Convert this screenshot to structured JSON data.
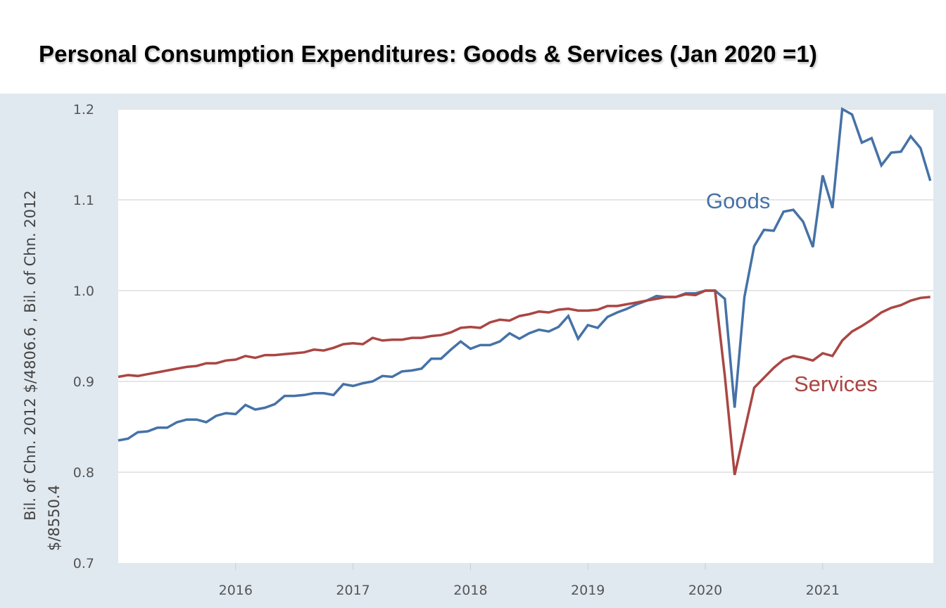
{
  "chart_data": {
    "type": "line",
    "title": "Personal Consumption Expenditures: Goods & Services (Jan 2020 =1)",
    "ylabel_lines": [
      "Bil. of Chn. 2012 $/4806.6 , Bil. of Chn. 2012",
      "$/8550.4"
    ],
    "xlabel": "",
    "x_start": "2015-01",
    "x_frequency": "monthly",
    "xlim": [
      "2015-01",
      "2021-12"
    ],
    "ylim": [
      0.7,
      1.2
    ],
    "y_ticks": [
      "0.7",
      "0.8",
      "0.9",
      "1.0",
      "1.1",
      "1.2"
    ],
    "x_ticks": [
      "2016",
      "2017",
      "2018",
      "2019",
      "2020",
      "2021"
    ],
    "grid": "horizontal",
    "series": [
      {
        "name": "Goods",
        "color": "#4572a7",
        "values": [
          0.835,
          0.837,
          0.844,
          0.845,
          0.849,
          0.849,
          0.855,
          0.858,
          0.858,
          0.855,
          0.862,
          0.865,
          0.864,
          0.874,
          0.869,
          0.871,
          0.875,
          0.884,
          0.884,
          0.885,
          0.887,
          0.887,
          0.885,
          0.897,
          0.895,
          0.898,
          0.9,
          0.906,
          0.905,
          0.911,
          0.912,
          0.914,
          0.925,
          0.925,
          0.935,
          0.944,
          0.936,
          0.94,
          0.94,
          0.944,
          0.953,
          0.947,
          0.953,
          0.957,
          0.955,
          0.96,
          0.972,
          0.947,
          0.962,
          0.959,
          0.971,
          0.976,
          0.98,
          0.985,
          0.989,
          0.994,
          0.993,
          0.993,
          0.997,
          0.997,
          1.0,
          1.0,
          0.991,
          0.871,
          0.993,
          1.049,
          1.067,
          1.066,
          1.087,
          1.089,
          1.076,
          1.048,
          1.127,
          1.091,
          1.2,
          1.194,
          1.163,
          1.168,
          1.138,
          1.152,
          1.153,
          1.17,
          1.157,
          1.121
        ]
      },
      {
        "name": "Services",
        "color": "#aa4643",
        "values": [
          0.905,
          0.907,
          0.906,
          0.908,
          0.91,
          0.912,
          0.914,
          0.916,
          0.917,
          0.92,
          0.92,
          0.923,
          0.924,
          0.928,
          0.926,
          0.929,
          0.929,
          0.93,
          0.931,
          0.932,
          0.935,
          0.934,
          0.937,
          0.941,
          0.942,
          0.941,
          0.948,
          0.945,
          0.946,
          0.946,
          0.948,
          0.948,
          0.95,
          0.951,
          0.954,
          0.959,
          0.96,
          0.959,
          0.965,
          0.968,
          0.967,
          0.972,
          0.974,
          0.977,
          0.976,
          0.979,
          0.98,
          0.978,
          0.978,
          0.979,
          0.983,
          0.983,
          0.985,
          0.987,
          0.989,
          0.991,
          0.993,
          0.993,
          0.996,
          0.995,
          1.0,
          1.0,
          0.906,
          0.797,
          0.845,
          0.893,
          0.904,
          0.915,
          0.924,
          0.928,
          0.926,
          0.923,
          0.931,
          0.928,
          0.945,
          0.955,
          0.961,
          0.968,
          0.976,
          0.981,
          0.984,
          0.989,
          0.992,
          0.993
        ]
      }
    ],
    "annotations": [
      "Goods",
      "Services"
    ]
  }
}
